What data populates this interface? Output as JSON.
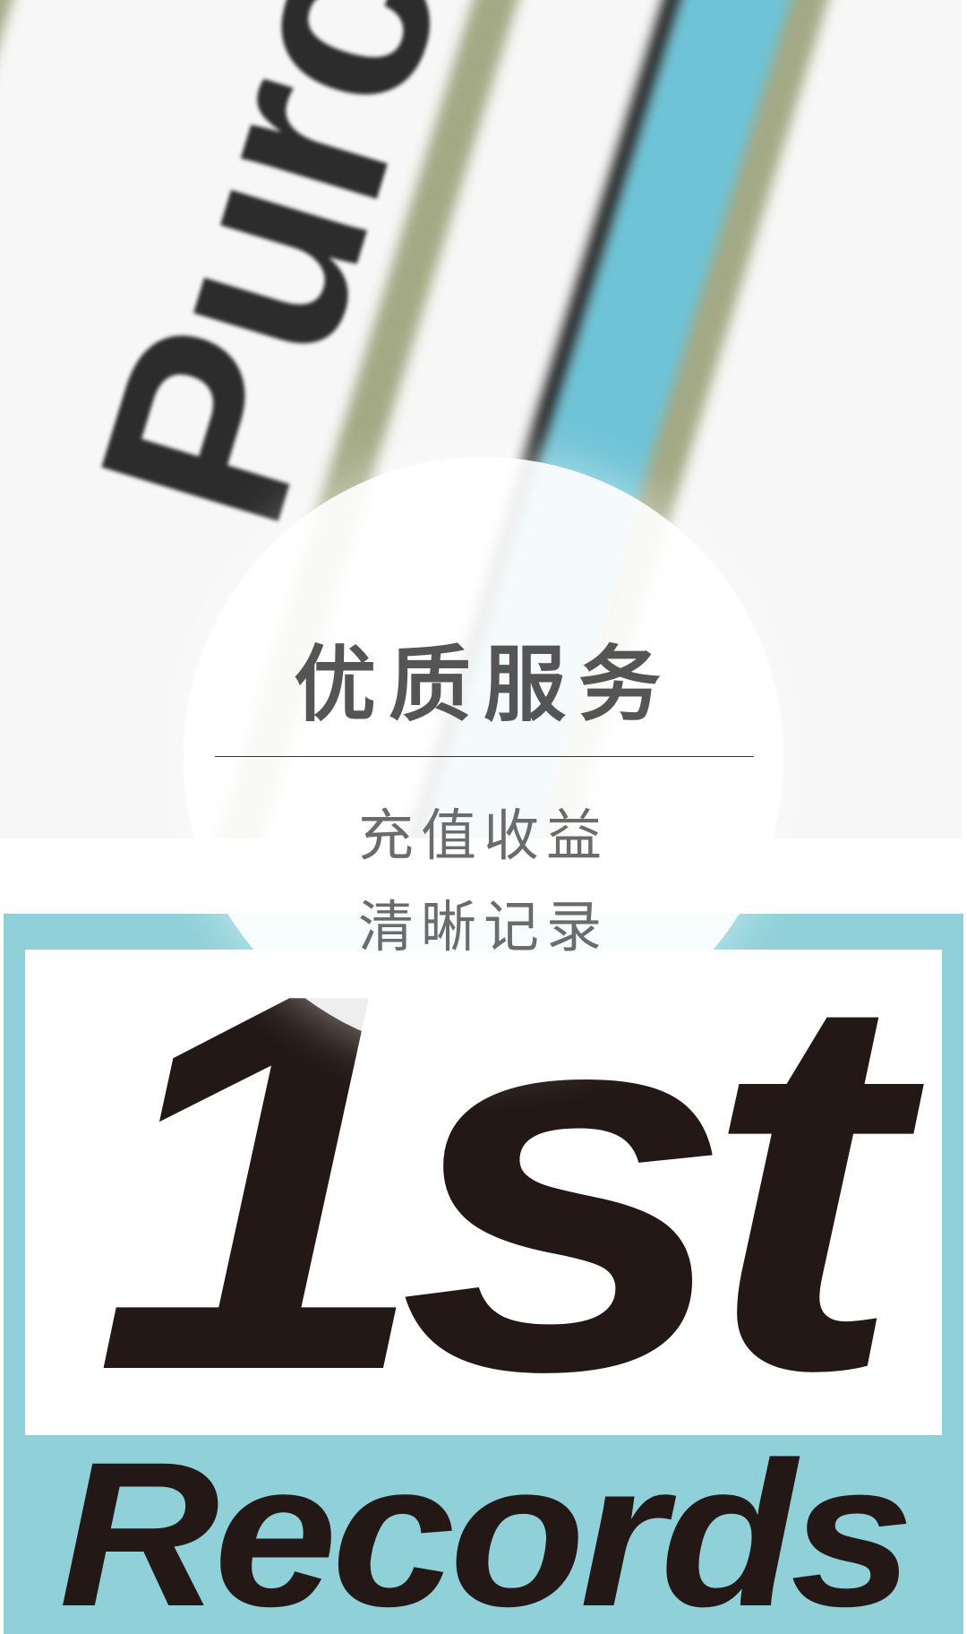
{
  "hero": {
    "background_word": "Purchase",
    "colors": {
      "olive": "#a4a985",
      "blue": "#6ec3d6",
      "dark": "#1e1e1e",
      "base": "#f6f7f6"
    }
  },
  "circle": {
    "title": "优质服务",
    "line1": "充值收益",
    "line2": "清晰记录"
  },
  "logo": {
    "big_text": "1st",
    "sub_text": "Records",
    "colors": {
      "frame": "#90d0d9",
      "ink": "#231815",
      "panel": "#ffffff"
    }
  }
}
